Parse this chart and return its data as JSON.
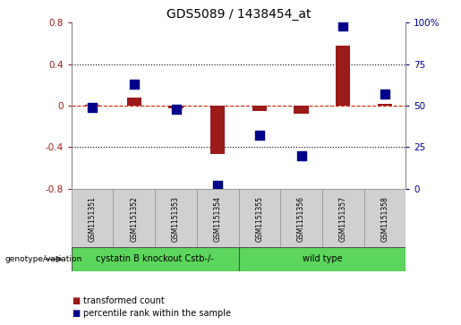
{
  "title": "GDS5089 / 1438454_at",
  "samples": [
    "GSM1151351",
    "GSM1151352",
    "GSM1151353",
    "GSM1151354",
    "GSM1151355",
    "GSM1151356",
    "GSM1151357",
    "GSM1151358"
  ],
  "red_values": [
    0.01,
    0.08,
    -0.03,
    -0.47,
    -0.05,
    -0.08,
    0.58,
    0.02
  ],
  "blue_values": [
    49,
    63,
    48,
    2,
    32,
    20,
    98,
    57
  ],
  "ylim_left": [
    -0.8,
    0.8
  ],
  "ylim_right": [
    0,
    100
  ],
  "yticks_left": [
    -0.8,
    -0.4,
    0.0,
    0.4,
    0.8
  ],
  "yticks_right": [
    0,
    25,
    50,
    75,
    100
  ],
  "ytick_labels_left": [
    "-0.8",
    "-0.4",
    "0",
    "0.4",
    "0.8"
  ],
  "ytick_labels_right": [
    "0",
    "25",
    "50",
    "75",
    "100%"
  ],
  "red_color": "#9b1a1a",
  "blue_color": "#00008b",
  "dashed_red_color": "#cc2200",
  "group1_label": "cystatin B knockout Cstb-/-",
  "group2_label": "wild type",
  "group1_count": 4,
  "group2_count": 4,
  "group_color": "#5cd65c",
  "row_label": "genotype/variation",
  "legend_red": "transformed count",
  "legend_blue": "percentile rank within the sample",
  "bar_width": 0.35,
  "marker_size": 5,
  "cell_color": "#d0d0d0",
  "plot_bg": "#f5f5f5"
}
